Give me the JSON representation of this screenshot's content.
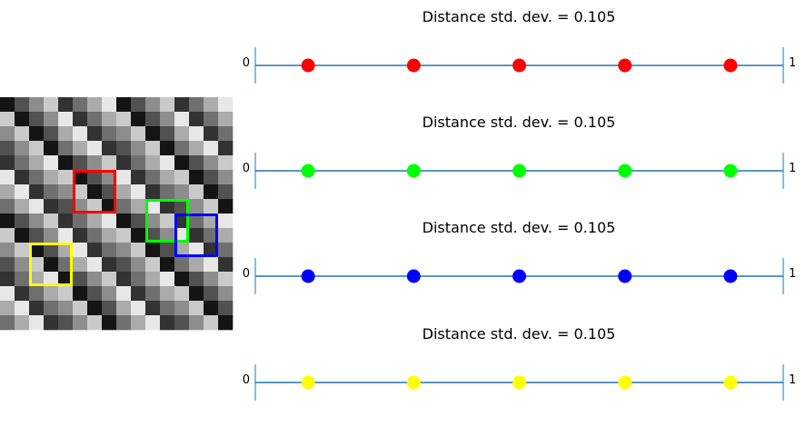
{
  "chart_data": [
    {
      "type": "heatmap",
      "title": "",
      "grid": false,
      "cmap": "gray",
      "rows": 16,
      "cols": 16,
      "values": [
        [
          0,
          2,
          4,
          6,
          1,
          3,
          5,
          7,
          0,
          2,
          4,
          6,
          1,
          3,
          5,
          7
        ],
        [
          6,
          0,
          2,
          4,
          7,
          1,
          3,
          5,
          6,
          0,
          2,
          4,
          7,
          1,
          3,
          5
        ],
        [
          4,
          6,
          0,
          2,
          5,
          7,
          1,
          3,
          4,
          6,
          0,
          2,
          5,
          7,
          1,
          3
        ],
        [
          2,
          4,
          6,
          0,
          3,
          5,
          7,
          1,
          2,
          4,
          6,
          0,
          3,
          5,
          7,
          1
        ],
        [
          1,
          3,
          5,
          7,
          0,
          2,
          4,
          6,
          1,
          3,
          5,
          7,
          0,
          2,
          4,
          6
        ],
        [
          7,
          1,
          3,
          5,
          6,
          0,
          2,
          4,
          7,
          1,
          3,
          5,
          6,
          0,
          2,
          4
        ],
        [
          5,
          7,
          1,
          3,
          4,
          6,
          0,
          2,
          5,
          7,
          1,
          3,
          4,
          6,
          0,
          2
        ],
        [
          3,
          5,
          7,
          1,
          2,
          4,
          6,
          0,
          3,
          5,
          7,
          1,
          2,
          4,
          6,
          0
        ],
        [
          0,
          2,
          4,
          6,
          1,
          3,
          5,
          7,
          0,
          2,
          4,
          6,
          1,
          3,
          5,
          7
        ],
        [
          6,
          0,
          2,
          4,
          7,
          1,
          3,
          5,
          6,
          0,
          2,
          4,
          7,
          1,
          3,
          5
        ],
        [
          4,
          6,
          0,
          2,
          5,
          7,
          1,
          3,
          4,
          6,
          0,
          2,
          5,
          7,
          1,
          3
        ],
        [
          2,
          4,
          6,
          0,
          3,
          5,
          7,
          1,
          2,
          4,
          6,
          0,
          3,
          5,
          7,
          1
        ],
        [
          1,
          3,
          5,
          7,
          0,
          2,
          4,
          6,
          1,
          3,
          5,
          7,
          0,
          2,
          4,
          6
        ],
        [
          7,
          1,
          3,
          5,
          6,
          0,
          2,
          4,
          7,
          1,
          3,
          5,
          6,
          0,
          2,
          4
        ],
        [
          5,
          7,
          1,
          3,
          4,
          6,
          0,
          2,
          5,
          7,
          1,
          3,
          4,
          6,
          0,
          2
        ],
        [
          3,
          5,
          7,
          1,
          2,
          4,
          6,
          0,
          3,
          5,
          7,
          1,
          2,
          4,
          6,
          0
        ]
      ],
      "vmin": 0,
      "vmax": 7,
      "highlight_boxes": [
        {
          "color": "#ff0000",
          "row": 5,
          "col": 5,
          "size": 3
        },
        {
          "color": "#00ff00",
          "row": 7,
          "col": 10,
          "size": 3
        },
        {
          "color": "#0000ff",
          "row": 8,
          "col": 12,
          "size": 3
        },
        {
          "color": "#ffff00",
          "row": 10,
          "col": 2,
          "size": 3
        }
      ]
    },
    {
      "type": "scatter",
      "title": "Distance std. dev. = 0.105",
      "xlim": [
        0,
        1
      ],
      "xticks": [
        {
          "value": 0,
          "label": "0"
        },
        {
          "value": 1,
          "label": "1"
        }
      ],
      "grid": false,
      "line_color": "#1f77b4",
      "series": [
        {
          "color": "#ff0000",
          "x": [
            0.1,
            0.3,
            0.5,
            0.7,
            0.9
          ]
        }
      ]
    },
    {
      "type": "scatter",
      "title": "Distance std. dev. = 0.105",
      "xlim": [
        0,
        1
      ],
      "xticks": [
        {
          "value": 0,
          "label": "0"
        },
        {
          "value": 1,
          "label": "1"
        }
      ],
      "grid": false,
      "line_color": "#1f77b4",
      "series": [
        {
          "color": "#00ff00",
          "x": [
            0.1,
            0.3,
            0.5,
            0.7,
            0.9
          ]
        }
      ]
    },
    {
      "type": "scatter",
      "title": "Distance std. dev. = 0.105",
      "xlim": [
        0,
        1
      ],
      "xticks": [
        {
          "value": 0,
          "label": "0"
        },
        {
          "value": 1,
          "label": "1"
        }
      ],
      "grid": false,
      "line_color": "#1f77b4",
      "series": [
        {
          "color": "#0000ff",
          "x": [
            0.1,
            0.3,
            0.5,
            0.7,
            0.9
          ]
        }
      ]
    },
    {
      "type": "scatter",
      "title": "Distance std. dev. = 0.105",
      "xlim": [
        0,
        1
      ],
      "xticks": [
        {
          "value": 0,
          "label": "0"
        },
        {
          "value": 1,
          "label": "1"
        }
      ],
      "grid": false,
      "line_color": "#1f77b4",
      "series": [
        {
          "color": "#ffff00",
          "x": [
            0.1,
            0.3,
            0.5,
            0.7,
            0.9
          ]
        }
      ]
    }
  ]
}
